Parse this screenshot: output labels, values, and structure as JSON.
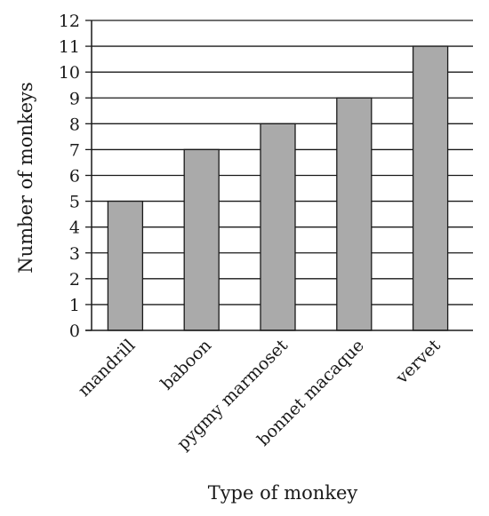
{
  "chart_data": {
    "type": "bar",
    "title": "",
    "xlabel": "Type of monkey",
    "ylabel": "Number of monkeys",
    "categories": [
      "mandrill",
      "baboon",
      "pygmy marmoset",
      "bonnet macaque",
      "vervet"
    ],
    "values": [
      5,
      7,
      8,
      9,
      11
    ],
    "ylim": [
      0,
      12
    ],
    "yticks": [
      "0",
      "1",
      "2",
      "3",
      "4",
      "5",
      "6",
      "7",
      "8",
      "9",
      "10",
      "11",
      "12"
    ],
    "grid": true,
    "bar_color": "#aaaaaa",
    "bar_edge_color": "#1a1a1a",
    "grid_color": "#1a1a1a"
  }
}
